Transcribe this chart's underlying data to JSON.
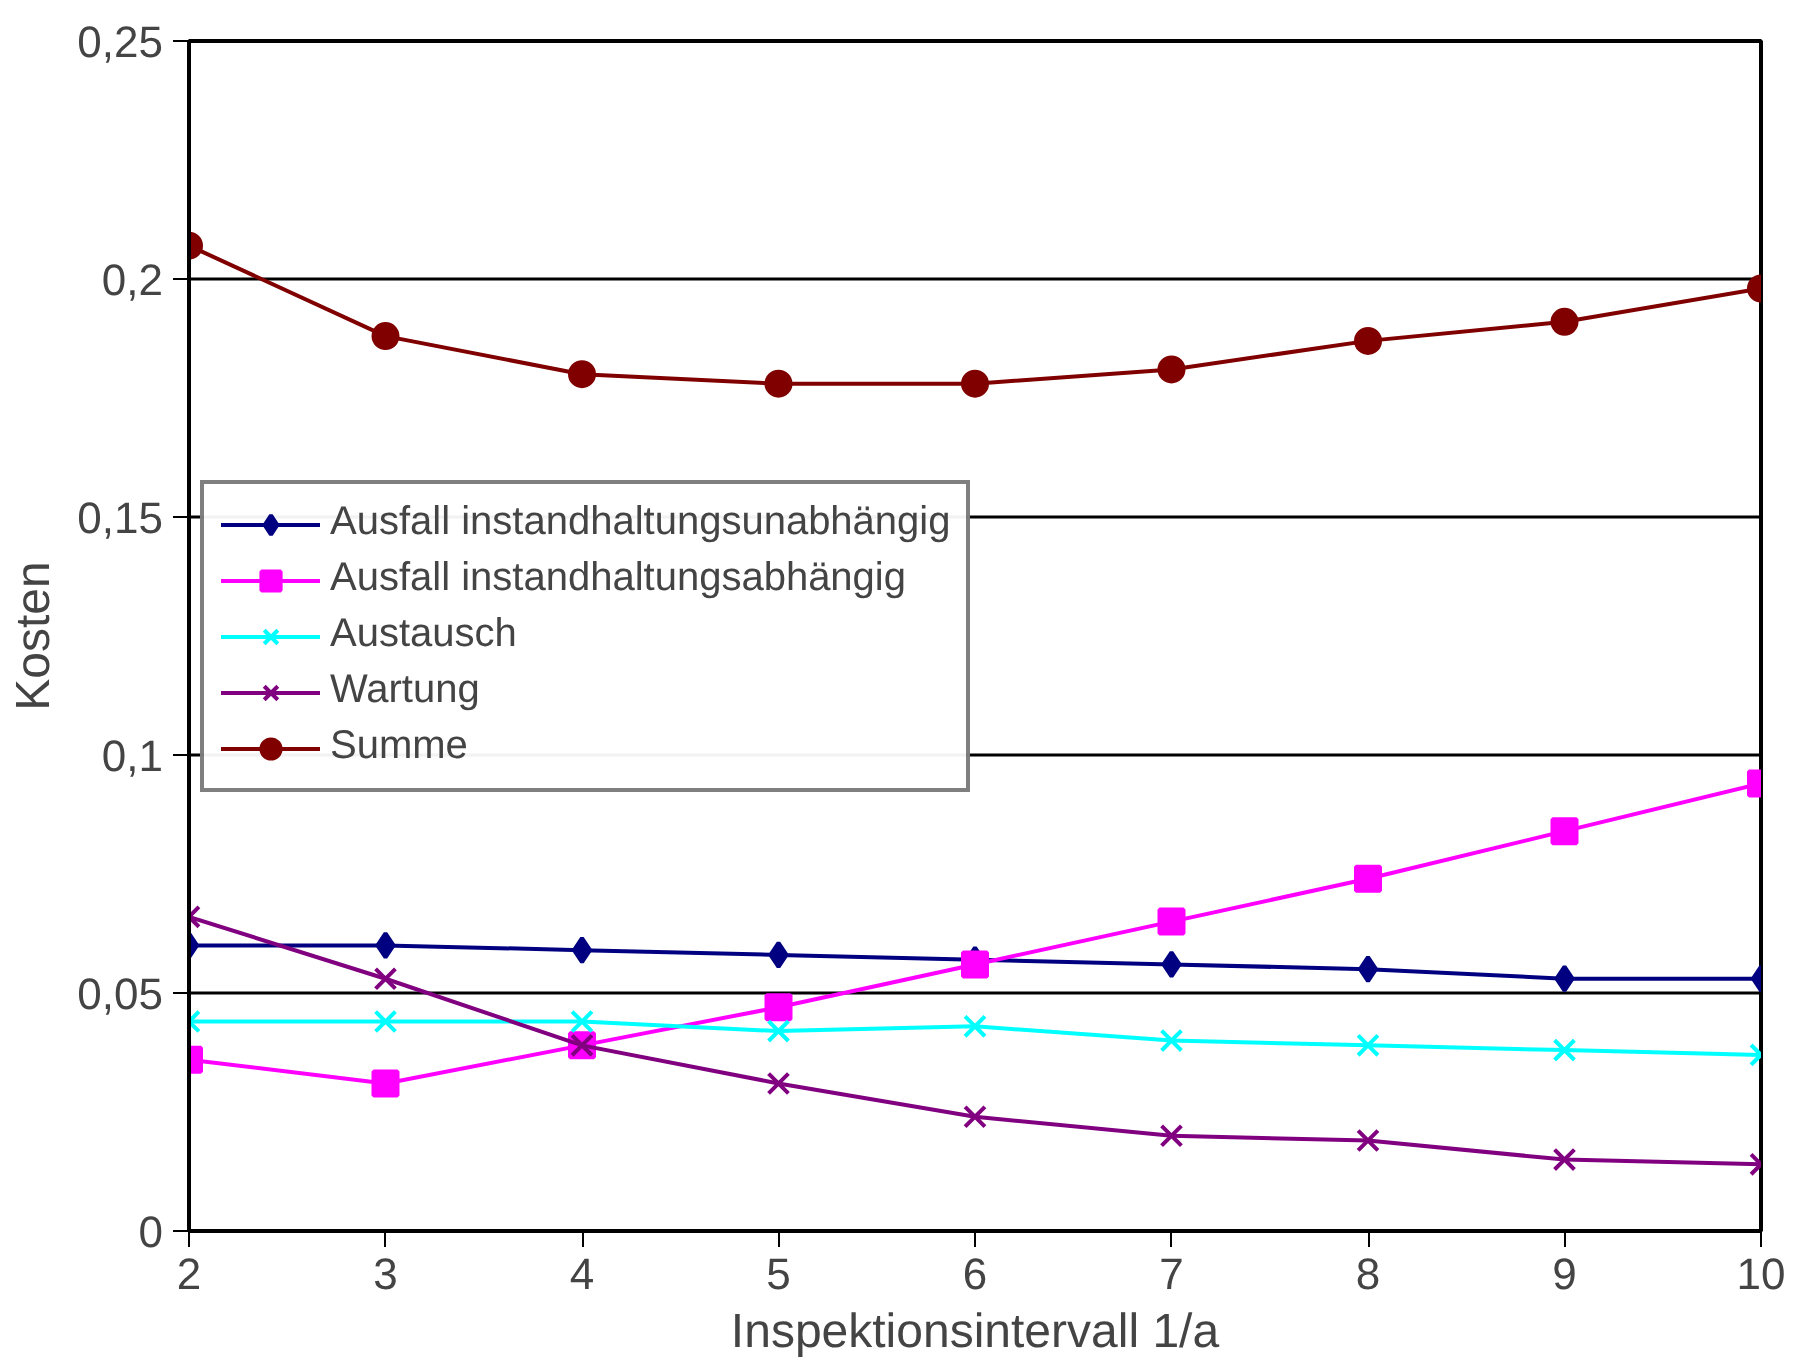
{
  "chart_data": {
    "type": "line",
    "xlabel": "Inspektionsintervall 1/a",
    "ylabel": "Kosten",
    "x": [
      2,
      3,
      4,
      5,
      6,
      7,
      8,
      9,
      10
    ],
    "xlim": [
      2,
      10
    ],
    "xticks": [
      2,
      3,
      4,
      5,
      6,
      7,
      8,
      9,
      10
    ],
    "ylim": [
      0,
      0.25
    ],
    "yticks": [
      {
        "value": 0,
        "label": "0"
      },
      {
        "value": 0.05,
        "label": "0,05"
      },
      {
        "value": 0.1,
        "label": "0,1"
      },
      {
        "value": 0.15,
        "label": "0,15"
      },
      {
        "value": 0.2,
        "label": "0,2"
      },
      {
        "value": 0.25,
        "label": "0,25"
      }
    ],
    "grid": "y",
    "legend": "left",
    "line_style": "solid",
    "series": [
      {
        "name": "Ausfall instandhaltungsunabhängig",
        "color": "#000080",
        "marker": "diamond",
        "values": [
          0.06,
          0.06,
          0.059,
          0.058,
          0.057,
          0.056,
          0.055,
          0.053,
          0.053
        ]
      },
      {
        "name": "Ausfall instandhaltungsabhängig",
        "color": "#ff00ff",
        "marker": "square",
        "values": [
          0.036,
          0.031,
          0.039,
          0.047,
          0.056,
          0.065,
          0.074,
          0.084,
          0.094
        ]
      },
      {
        "name": "Austausch",
        "color": "#00ffff",
        "marker": "cross",
        "values": [
          0.044,
          0.044,
          0.044,
          0.042,
          0.043,
          0.04,
          0.039,
          0.038,
          0.037
        ]
      },
      {
        "name": "Wartung",
        "color": "#800080",
        "marker": "cross",
        "values": [
          0.066,
          0.053,
          0.039,
          0.031,
          0.024,
          0.02,
          0.019,
          0.015,
          0.014
        ]
      },
      {
        "name": "Summe",
        "color": "#800000",
        "marker": "circle",
        "values": [
          0.207,
          0.188,
          0.18,
          0.178,
          0.178,
          0.181,
          0.187,
          0.191,
          0.198
        ]
      }
    ]
  }
}
